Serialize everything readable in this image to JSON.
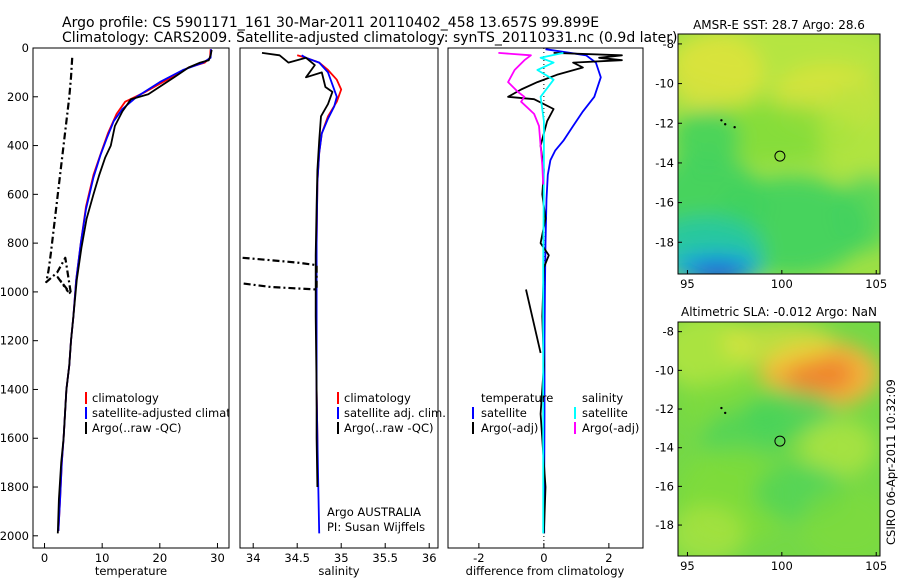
{
  "header": {
    "line1": "Argo profile: CS 5901171_161 30-Mar-2011 20110402_458 13.657S 99.899E",
    "line2": "Climatology: CARS2009. Satellite-adjusted climatology: synTS_20110331.nc (0.9d later)"
  },
  "side_label": "CSIRO 06-Apr-2011 10:32:09",
  "colors": {
    "climatology": "#ff0000",
    "satellite": "#0000ff",
    "argo": "#000000",
    "salinity_satellite": "#00ffff",
    "salinity_argo": "#ff00ff"
  },
  "annotations": {
    "argo_country": "Argo AUSTRALIA",
    "pi": "PI: Susan Wijffels"
  },
  "chart_data": [
    {
      "id": "temperature",
      "type": "line",
      "title": "",
      "xlabel": "temperature",
      "ylabel": "",
      "xlim": [
        -2,
        32
      ],
      "ylim": [
        2050,
        0
      ],
      "xticks": [
        0,
        10,
        20,
        30
      ],
      "yticks": [
        0,
        200,
        400,
        600,
        800,
        1000,
        1200,
        1400,
        1600,
        1800,
        2000
      ],
      "legend": [
        "climatology",
        "satellite-adjusted climatology",
        "Argo(..raw -QC)"
      ],
      "series": [
        {
          "name": "climatology",
          "color": "#ff0000",
          "dash": "solid",
          "x": [
            28.8,
            28.7,
            27.8,
            25,
            22,
            17.5,
            14,
            12.5,
            11,
            9.8,
            8.5,
            7.2,
            6.3,
            5.5,
            5,
            4.6,
            4.3,
            3.8,
            3.3,
            3,
            2.7,
            2.4
          ],
          "y": [
            5,
            40,
            60,
            80,
            120,
            180,
            220,
            270,
            350,
            430,
            520,
            650,
            800,
            950,
            1100,
            1200,
            1300,
            1400,
            1600,
            1700,
            1850,
            1980
          ]
        },
        {
          "name": "satellite-adjusted climatology",
          "color": "#0000ff",
          "dash": "solid",
          "x": [
            28.9,
            28.8,
            27.5,
            24,
            20,
            16,
            13.5,
            12,
            10.8,
            9.7,
            8.5,
            7.2,
            6.3,
            5.5,
            5,
            4.6,
            4.3,
            3.8,
            3.3,
            3,
            2.7,
            2.4
          ],
          "y": [
            5,
            40,
            60,
            90,
            140,
            200,
            250,
            300,
            370,
            440,
            530,
            660,
            800,
            950,
            1100,
            1200,
            1300,
            1400,
            1600,
            1700,
            1850,
            1980
          ]
        },
        {
          "name": "Argo(..raw -QC)",
          "color": "#000000",
          "dash": "solid",
          "x": [
            29,
            28.8,
            28.5,
            27,
            25,
            22.5,
            18,
            15,
            13.5,
            12.2,
            11.5,
            10.5,
            9.5,
            8.5,
            7.3,
            6.4,
            5.6,
            5,
            4.6,
            4.3,
            3.8,
            3.3,
            2.9,
            2.5,
            2.3
          ],
          "y": [
            8,
            30,
            50,
            60,
            80,
            120,
            190,
            210,
            260,
            320,
            400,
            450,
            520,
            600,
            700,
            820,
            950,
            1100,
            1200,
            1300,
            1400,
            1600,
            1700,
            1850,
            1990
          ]
        },
        {
          "name": "Argo raw",
          "color": "#000000",
          "dash": "dashdot",
          "x": [
            4.8,
            4.6,
            4.3,
            3.9,
            3.5,
            3.1,
            2.7,
            2.3,
            1.9,
            1.5,
            1.1,
            0.7,
            0.3,
            2.2,
            3.6,
            4.6,
            2.3,
            4.1
          ],
          "y": [
            40,
            120,
            200,
            280,
            360,
            440,
            520,
            600,
            680,
            760,
            840,
            910,
            960,
            920,
            860,
            1010,
            940,
            1000
          ]
        }
      ]
    },
    {
      "id": "salinity",
      "type": "line",
      "title": "",
      "xlabel": "salinity",
      "ylabel": "",
      "xlim": [
        33.85,
        36.1
      ],
      "ylim": [
        2050,
        0
      ],
      "xticks": [
        34,
        34.5,
        35,
        35.5,
        36
      ],
      "xtick_labels": [
        "34",
        "34.5",
        "35",
        "35.5",
        "36"
      ],
      "legend": [
        "climatology",
        "satellite adj. clim.",
        "Argo(..raw -QC)"
      ],
      "series": [
        {
          "name": "climatology",
          "color": "#ff0000",
          "dash": "solid",
          "x": [
            34.5,
            34.6,
            34.75,
            34.85,
            34.95,
            35,
            34.95,
            34.85,
            34.78,
            34.75,
            34.73,
            34.72,
            34.72,
            34.72,
            34.73,
            34.73
          ],
          "y": [
            30,
            40,
            60,
            90,
            130,
            170,
            220,
            280,
            350,
            430,
            550,
            800,
            1100,
            1400,
            1600,
            1680
          ]
        },
        {
          "name": "satellite adj. clim.",
          "color": "#0000ff",
          "dash": "solid",
          "x": [
            34.55,
            34.6,
            34.75,
            34.85,
            34.9,
            34.95,
            34.92,
            34.85,
            34.78,
            34.75,
            34.73,
            34.72,
            34.72,
            34.72,
            34.73,
            34.74,
            34.75
          ],
          "y": [
            30,
            40,
            60,
            100,
            150,
            200,
            240,
            290,
            350,
            430,
            550,
            800,
            1100,
            1400,
            1600,
            1800,
            1990
          ]
        },
        {
          "name": "Argo(..raw -QC)",
          "color": "#000000",
          "dash": "solid",
          "x": [
            34.1,
            34.3,
            34.4,
            34.6,
            34.7,
            34.6,
            34.78,
            34.82,
            34.9,
            34.85,
            34.77,
            34.75,
            34.73,
            34.72,
            34.71,
            34.71,
            34.72,
            34.72,
            34.73
          ],
          "y": [
            20,
            30,
            60,
            40,
            70,
            120,
            100,
            160,
            180,
            230,
            280,
            380,
            500,
            650,
            850,
            1100,
            1400,
            1600,
            1800
          ]
        },
        {
          "name": "Argo raw",
          "color": "#000000",
          "dash": "dashdot",
          "x": [
            33.88,
            34.2,
            34.5,
            34.72,
            34.72,
            34.45,
            34.2,
            33.88
          ],
          "y": [
            860,
            870,
            880,
            890,
            990,
            985,
            980,
            965
          ]
        }
      ]
    },
    {
      "id": "difference",
      "type": "line",
      "title": "",
      "xlabel": "difference from climatology",
      "ylabel": "",
      "xlim": [
        -2.95,
        3.05
      ],
      "ylim": [
        2050,
        0
      ],
      "xticks": [
        -2,
        0,
        2
      ],
      "xtick_labels": [
        "-2",
        "0",
        "2"
      ],
      "legend": [
        "temperature",
        "satellite",
        "Argo(-adj)",
        "salinity",
        "satellite",
        "Argo(-adj)"
      ],
      "series": [
        {
          "name": "temperature satellite",
          "color": "#0000ff",
          "dash": "solid",
          "x": [
            0.05,
            1.3,
            1.6,
            1.75,
            1.55,
            1.2,
            0.9,
            0.6,
            0.35,
            0.2,
            0.12,
            0.08,
            0.05,
            0.03,
            0.02,
            0.02,
            0.01,
            0.01
          ],
          "y": [
            5,
            30,
            60,
            120,
            200,
            260,
            320,
            380,
            420,
            460,
            520,
            620,
            800,
            1000,
            1200,
            1500,
            1800,
            1990
          ]
        },
        {
          "name": "temperature Argo(-adj)",
          "color": "#000000",
          "dash": "solid",
          "x": [
            0.3,
            2.4,
            1.7,
            2.4,
            0.9,
            1.2,
            0.4,
            -0.2,
            -0.7,
            -1.1,
            -0.3,
            0.3,
            0.1,
            -0.1,
            0,
            -0.05,
            0.05,
            -0.1,
            0.15,
            0,
            -0.05,
            0,
            -0.1,
            0.05,
            0
          ],
          "y": [
            20,
            30,
            40,
            50,
            60,
            80,
            110,
            140,
            170,
            200,
            210,
            250,
            300,
            400,
            500,
            600,
            700,
            800,
            850,
            900,
            1100,
            1300,
            1500,
            1800,
            1990
          ]
        },
        {
          "name": "Argo raw difference",
          "color": "#000000",
          "dash": "solid",
          "x": [
            -0.55,
            -0.1
          ],
          "y": [
            990,
            1250
          ]
        },
        {
          "name": "salinity satellite",
          "color": "#00ffff",
          "dash": "solid",
          "x": [
            0.6,
            -0.1,
            0.3,
            -0.2,
            0.3,
            -0.1,
            0,
            0,
            -0.02,
            -0.02,
            -0.02,
            -0.02
          ],
          "y": [
            20,
            40,
            60,
            90,
            130,
            200,
            300,
            500,
            900,
            1300,
            1700,
            1990
          ]
        },
        {
          "name": "salinity Argo(-adj)",
          "color": "#ff00ff",
          "dash": "solid",
          "x": [
            -1.4,
            -0.4,
            -0.6,
            -0.9,
            -1.1,
            -0.8,
            -0.6,
            -0.7,
            -0.3,
            -0.15,
            -0.1,
            -0.05,
            -0.02
          ],
          "y": [
            20,
            30,
            50,
            90,
            140,
            180,
            200,
            220,
            270,
            320,
            400,
            480,
            560
          ]
        }
      ]
    },
    {
      "id": "sst_map",
      "type": "heatmap",
      "title": "AMSR-E SST: 28.7 Argo: 28.6",
      "xlabel": "",
      "ylabel": "",
      "xlim": [
        94.5,
        105.2
      ],
      "ylim": [
        -19.6,
        -7.5
      ],
      "xticks": [
        95,
        100,
        105
      ],
      "yticks": [
        -8,
        -10,
        -12,
        -14,
        -16,
        -18
      ],
      "float_position": [
        99.899,
        -13.657
      ],
      "track": [
        [
          96.8,
          -11.85
        ],
        [
          97.0,
          -12.05
        ],
        [
          97.5,
          -12.2
        ]
      ],
      "palette": [
        "#1f3fd8",
        "#13a3e0",
        "#22c7a6",
        "#3fd260",
        "#7fdc3a",
        "#b8e640",
        "#e8e23a",
        "#f0b43a",
        "#f07a2a"
      ]
    },
    {
      "id": "sla_map",
      "type": "heatmap",
      "title": "Altimetric SLA: -0.012 Argo: NaN",
      "xlabel": "",
      "ylabel": "",
      "xlim": [
        94.5,
        105.2
      ],
      "ylim": [
        -19.6,
        -7.5
      ],
      "xticks": [
        95,
        100,
        105
      ],
      "yticks": [
        -8,
        -10,
        -12,
        -14,
        -16,
        -18
      ],
      "float_position": [
        99.899,
        -13.657
      ],
      "track": [
        [
          96.8,
          -11.95
        ],
        [
          97.0,
          -12.2
        ]
      ],
      "palette": [
        "#1f3fd8",
        "#13a3e0",
        "#22c7a6",
        "#3fd260",
        "#7fdc3a",
        "#b8e640",
        "#e8e23a",
        "#f0b43a",
        "#f07a2a"
      ]
    }
  ]
}
